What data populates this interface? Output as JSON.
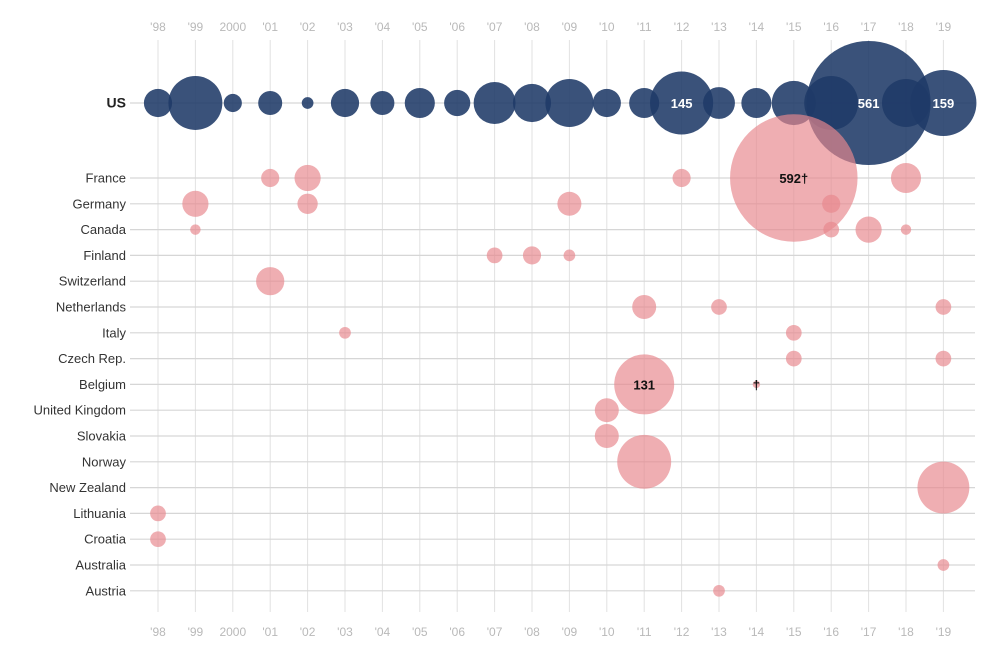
{
  "chart_data": {
    "type": "scatter",
    "subtype": "bubble",
    "title": "",
    "xlabel": "",
    "ylabel": "",
    "categories": [
      "'98",
      "'99",
      "2000",
      "'01",
      "'02",
      "'03",
      "'04",
      "'05",
      "'06",
      "'07",
      "'08",
      "'09",
      "'10",
      "'11",
      "'12",
      "'13",
      "'14",
      "'15",
      "'16",
      "'17",
      "'18",
      "'19"
    ],
    "colors": {
      "us": "#1f3a68",
      "other": "#e8888e",
      "grid": "#e2e2e2",
      "rowline": "#d6d6d6",
      "tick": "#b9b9b9"
    },
    "rows": [
      {
        "name": "US",
        "group": "us",
        "points": [
          {
            "x": "'98",
            "v": 29
          },
          {
            "x": "'99",
            "v": 106
          },
          {
            "x": "2000",
            "v": 12
          },
          {
            "x": "'01",
            "v": 21
          },
          {
            "x": "'02",
            "v": 5
          },
          {
            "x": "'03",
            "v": 29
          },
          {
            "x": "'04",
            "v": 21
          },
          {
            "x": "'05",
            "v": 33
          },
          {
            "x": "'06",
            "v": 25
          },
          {
            "x": "'07",
            "v": 64
          },
          {
            "x": "'08",
            "v": 53
          },
          {
            "x": "'09",
            "v": 84
          },
          {
            "x": "'10",
            "v": 29
          },
          {
            "x": "'11",
            "v": 33
          },
          {
            "x": "'12",
            "v": 145,
            "label": "145"
          },
          {
            "x": "'13",
            "v": 37
          },
          {
            "x": "'14",
            "v": 33
          },
          {
            "x": "'15",
            "v": 71
          },
          {
            "x": "'16",
            "v": 106
          },
          {
            "x": "'17",
            "v": 561,
            "label": "561"
          },
          {
            "x": "'18",
            "v": 84
          },
          {
            "x": "'19",
            "v": 159,
            "label": "159"
          }
        ]
      },
      {
        "name": "France",
        "group": "other",
        "points": [
          {
            "x": "'01",
            "v": 12
          },
          {
            "x": "'02",
            "v": 25
          },
          {
            "x": "'12",
            "v": 12
          },
          {
            "x": "'15",
            "v": 592,
            "label": "592†"
          },
          {
            "x": "'18",
            "v": 33
          }
        ]
      },
      {
        "name": "Germany",
        "group": "other",
        "points": [
          {
            "x": "'99",
            "v": 25
          },
          {
            "x": "'02",
            "v": 15
          },
          {
            "x": "'09",
            "v": 21
          },
          {
            "x": "'16",
            "v": 12
          }
        ]
      },
      {
        "name": "Canada",
        "group": "other",
        "points": [
          {
            "x": "'99",
            "v": 4
          },
          {
            "x": "'16",
            "v": 9
          },
          {
            "x": "'17",
            "v": 25
          },
          {
            "x": "'18",
            "v": 4
          }
        ]
      },
      {
        "name": "Finland",
        "group": "other",
        "points": [
          {
            "x": "'07",
            "v": 9
          },
          {
            "x": "'08",
            "v": 12
          },
          {
            "x": "'09",
            "v": 5
          }
        ]
      },
      {
        "name": "Switzerland",
        "group": "other",
        "points": [
          {
            "x": "'01",
            "v": 29
          }
        ]
      },
      {
        "name": "Netherlands",
        "group": "other",
        "points": [
          {
            "x": "'11",
            "v": 21
          },
          {
            "x": "'13",
            "v": 9
          },
          {
            "x": "'19",
            "v": 9
          }
        ]
      },
      {
        "name": "Italy",
        "group": "other",
        "points": [
          {
            "x": "'03",
            "v": 5
          },
          {
            "x": "'15",
            "v": 9
          }
        ]
      },
      {
        "name": "Czech Rep.",
        "group": "other",
        "points": [
          {
            "x": "'15",
            "v": 9
          },
          {
            "x": "'19",
            "v": 9
          }
        ]
      },
      {
        "name": "Belgium",
        "group": "other",
        "points": [
          {
            "x": "'11",
            "v": 131,
            "label": "131"
          },
          {
            "x": "'14",
            "v": 2,
            "label": "†"
          }
        ]
      },
      {
        "name": "United Kingdom",
        "group": "other",
        "points": [
          {
            "x": "'10",
            "v": 21
          }
        ]
      },
      {
        "name": "Slovakia",
        "group": "other",
        "points": [
          {
            "x": "'10",
            "v": 21
          }
        ]
      },
      {
        "name": "Norway",
        "group": "other",
        "points": [
          {
            "x": "'11",
            "v": 106
          }
        ]
      },
      {
        "name": "New Zealand",
        "group": "other",
        "points": [
          {
            "x": "'19",
            "v": 98
          }
        ]
      },
      {
        "name": "Lithuania",
        "group": "other",
        "points": [
          {
            "x": "'98",
            "v": 9
          }
        ]
      },
      {
        "name": "Croatia",
        "group": "other",
        "points": [
          {
            "x": "'98",
            "v": 9
          }
        ]
      },
      {
        "name": "Australia",
        "group": "other",
        "points": [
          {
            "x": "'19",
            "v": 5
          }
        ]
      },
      {
        "name": "Austria",
        "group": "other",
        "points": [
          {
            "x": "'13",
            "v": 5
          }
        ]
      }
    ],
    "grid": true,
    "legend": "none"
  }
}
